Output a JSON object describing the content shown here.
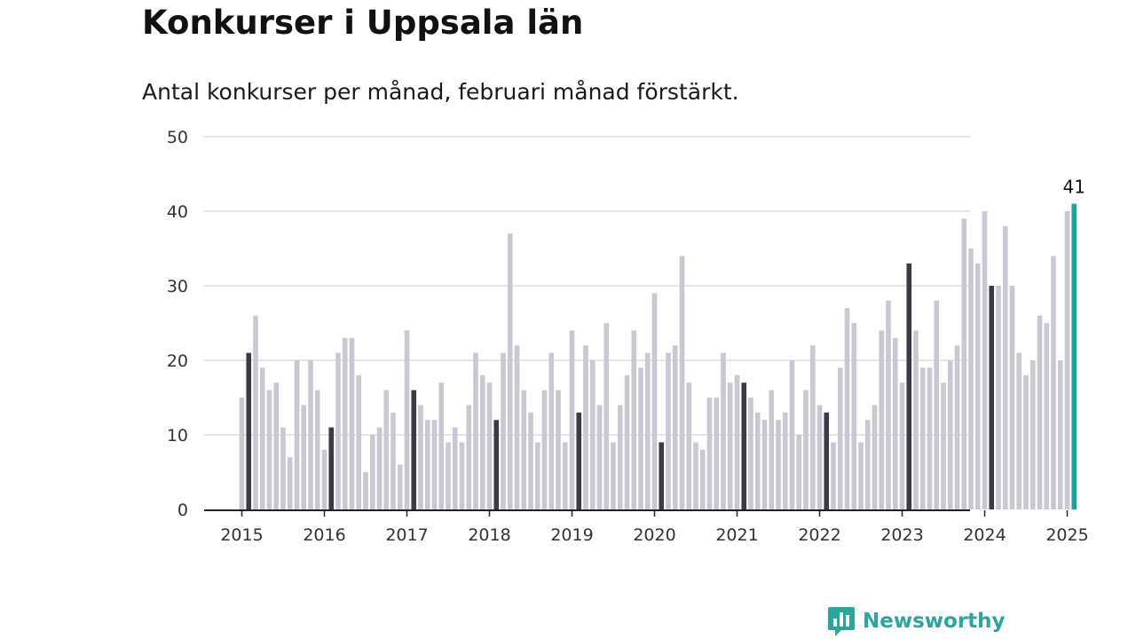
{
  "title": "Konkurser i Uppsala län",
  "subtitle": "Antal konkurser per månad, februari månad förstärkt.",
  "brand": {
    "name": "Newsworthy"
  },
  "colors": {
    "bar": "#c9c7d1",
    "highlight": "#3b3a45",
    "latest": "#13a89e",
    "grid": "#dddddd",
    "axis": "#222222"
  },
  "chart_data": {
    "type": "bar",
    "ylim": [
      0,
      50
    ],
    "yticks": [
      0,
      10,
      20,
      30,
      40,
      50
    ],
    "xticks": [
      "2015",
      "2016",
      "2017",
      "2018",
      "2019",
      "2020",
      "2021",
      "2022",
      "2023",
      "2024",
      "2025"
    ],
    "start_year": 2015,
    "start_month": 1,
    "highlight_month": 2,
    "latest_label": "41",
    "values": [
      15,
      21,
      26,
      19,
      16,
      17,
      11,
      7,
      20,
      14,
      20,
      16,
      8,
      11,
      21,
      23,
      23,
      18,
      5,
      10,
      11,
      16,
      13,
      6,
      24,
      16,
      14,
      12,
      12,
      17,
      9,
      11,
      9,
      14,
      21,
      18,
      17,
      12,
      21,
      37,
      22,
      16,
      13,
      9,
      16,
      21,
      16,
      9,
      24,
      13,
      22,
      20,
      14,
      25,
      9,
      14,
      18,
      24,
      19,
      21,
      29,
      9,
      21,
      22,
      34,
      17,
      9,
      8,
      15,
      15,
      21,
      17,
      18,
      17,
      15,
      13,
      12,
      16,
      12,
      13,
      20,
      10,
      16,
      22,
      14,
      13,
      9,
      19,
      27,
      25,
      9,
      12,
      14,
      24,
      28,
      23,
      17,
      33,
      24,
      19,
      19,
      28,
      17,
      20,
      22,
      39,
      35,
      33,
      40,
      30,
      30,
      38,
      30,
      21,
      18,
      20,
      26,
      25,
      34,
      20,
      40,
      41
    ]
  }
}
